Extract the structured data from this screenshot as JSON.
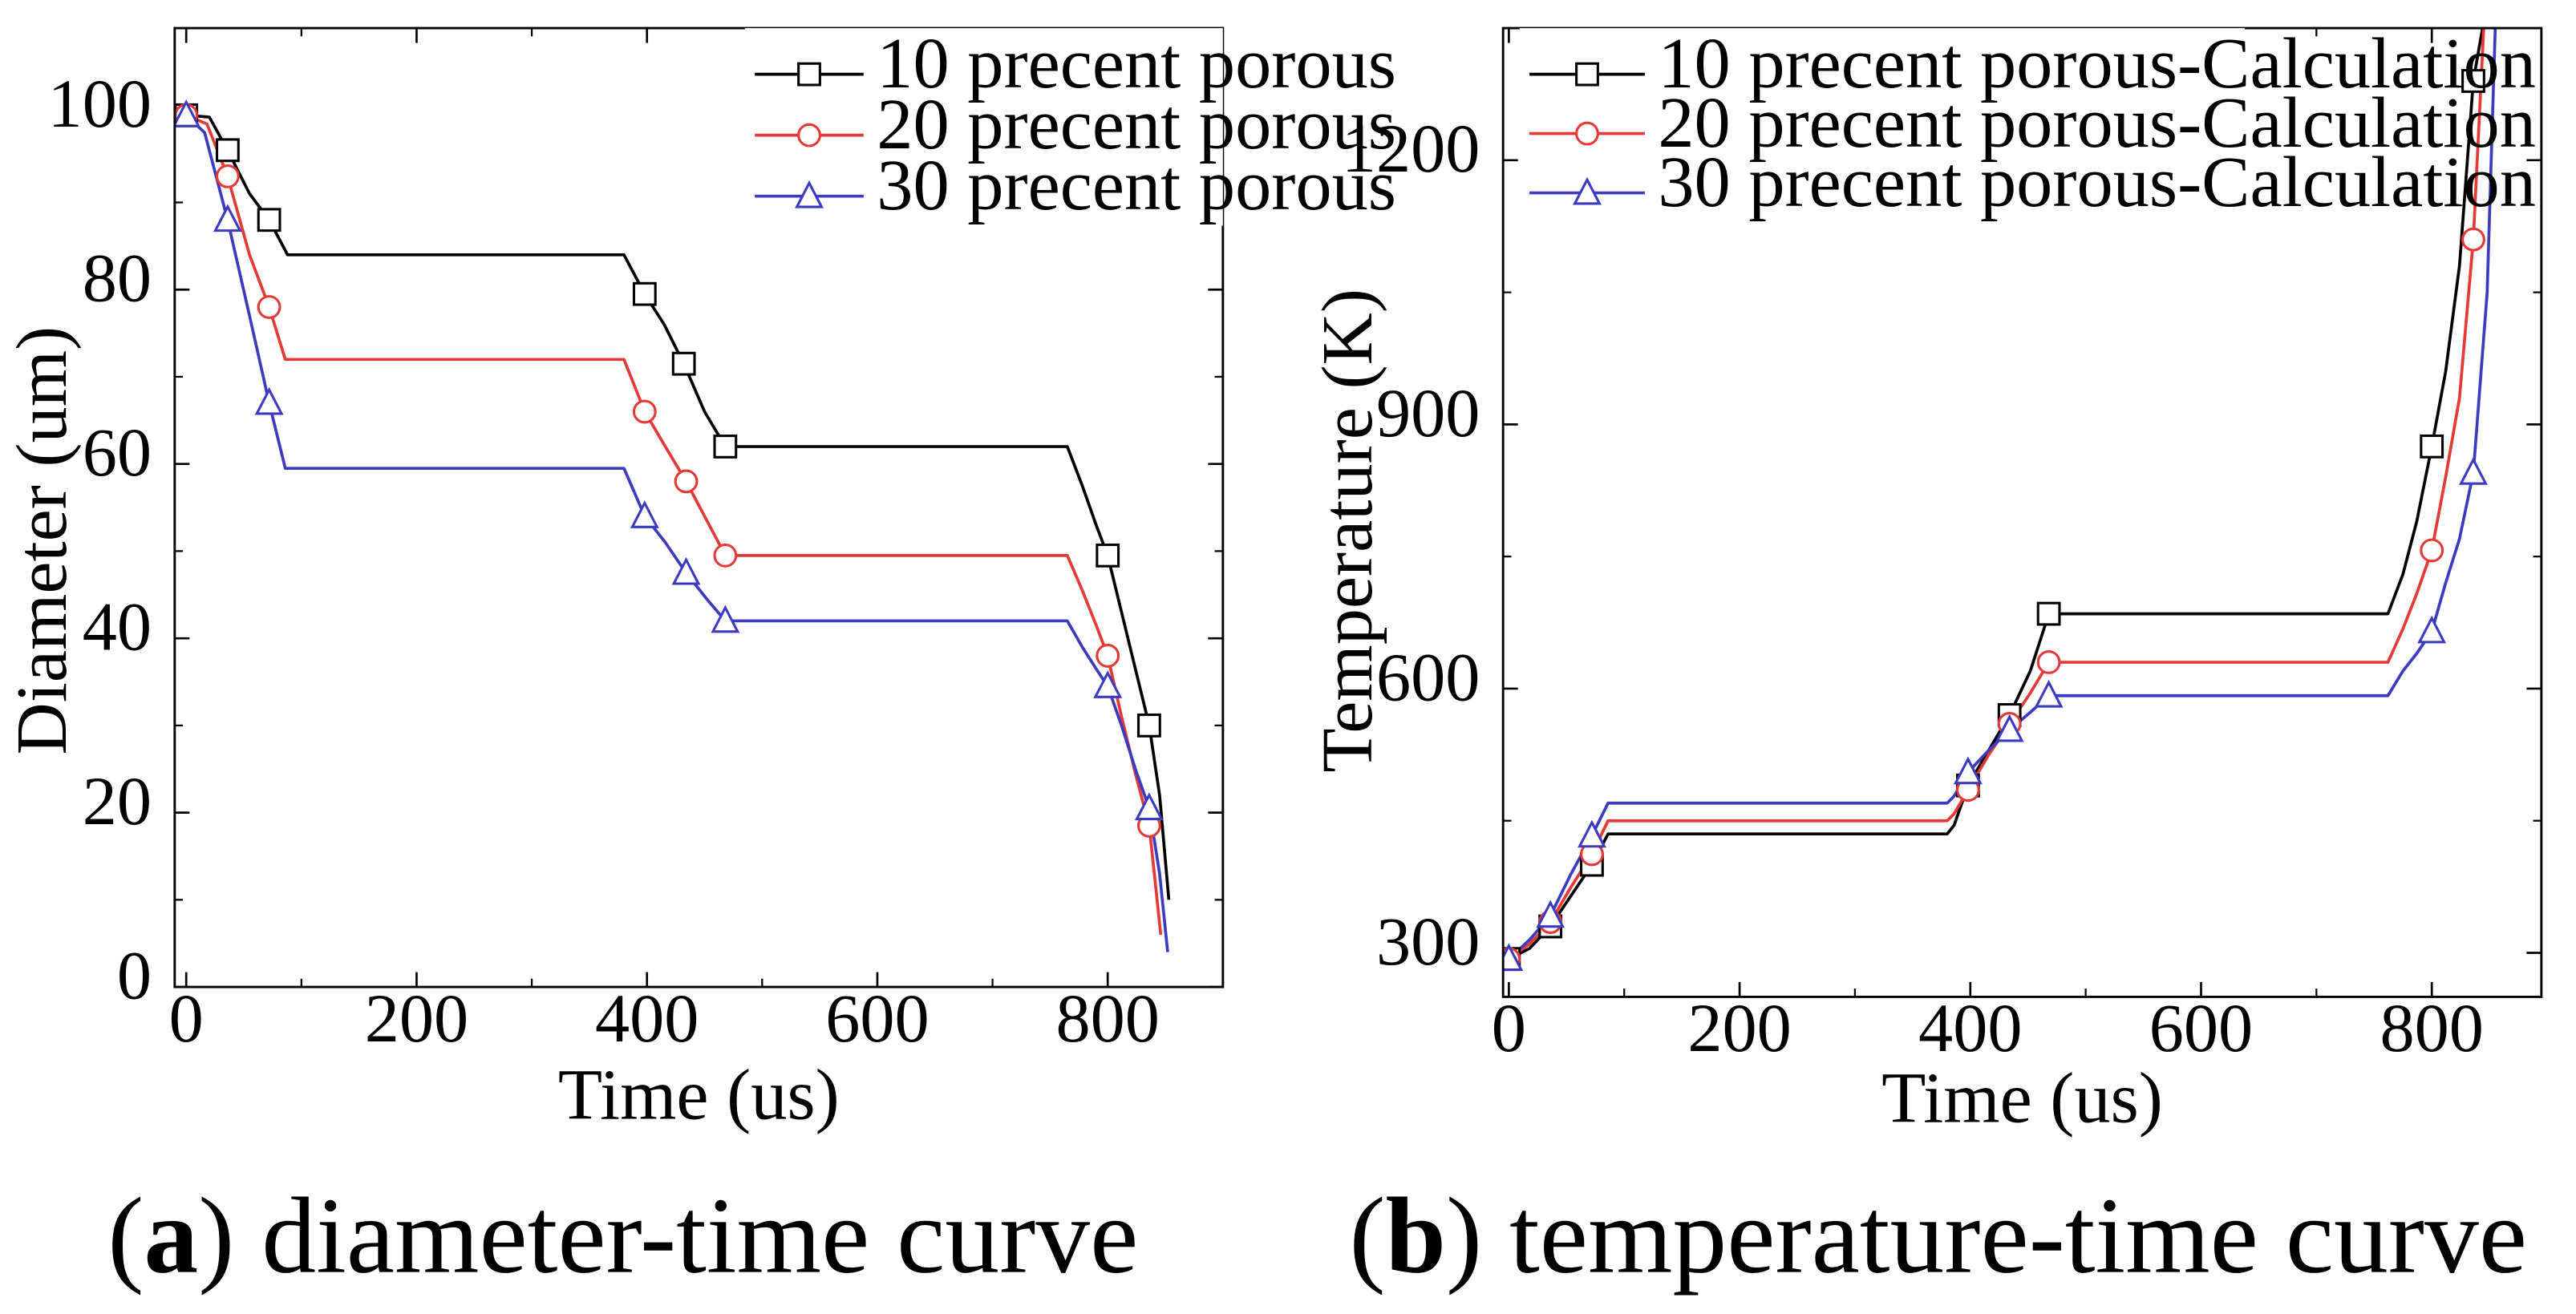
{
  "chart_data": [
    {
      "type": "line",
      "panel_letter": "a",
      "caption_rest": ") diameter-time curve",
      "xlabel": "Time (us)",
      "ylabel": "Diameter (um)",
      "xlim": [
        -10,
        900
      ],
      "ylim": [
        0,
        110
      ],
      "xticks": [
        0,
        200,
        400,
        600,
        800
      ],
      "xtick_labels": [
        "0",
        "200",
        "400",
        "600",
        "800"
      ],
      "yticks": [
        0,
        20,
        40,
        60,
        80,
        100
      ],
      "ytick_labels": [
        "0",
        "20",
        "40",
        "60",
        "80",
        "100"
      ],
      "legend_position": "top-right",
      "series": [
        {
          "name": "10 precent porous",
          "color": "#000000",
          "marker": "square",
          "points": [
            [
              0,
              100
            ],
            [
              20,
              99.8
            ],
            [
              36,
              96
            ],
            [
              55,
              91
            ],
            [
              72,
              88
            ],
            [
              88,
              84
            ],
            [
              150,
              84
            ],
            [
              380,
              84
            ],
            [
              398,
              79.5
            ],
            [
              415,
              76
            ],
            [
              432,
              71.5
            ],
            [
              450,
              66
            ],
            [
              468,
              62
            ],
            [
              520,
              62
            ],
            [
              765,
              62
            ],
            [
              778,
              57.5
            ],
            [
              790,
              53
            ],
            [
              800,
              49.5
            ],
            [
              812,
              43
            ],
            [
              824,
              36.5
            ],
            [
              836,
              30
            ],
            [
              845,
              22
            ],
            [
              853,
              10
            ]
          ],
          "markers": [
            [
              0,
              100
            ],
            [
              36,
              96
            ],
            [
              72,
              88
            ],
            [
              398,
              79.5
            ],
            [
              432,
              71.5
            ],
            [
              468,
              62
            ],
            [
              800,
              49.5
            ],
            [
              836,
              30
            ]
          ]
        },
        {
          "name": "20 precent porous",
          "color": "#e53935",
          "marker": "circle",
          "points": [
            [
              0,
              100
            ],
            [
              18,
              99
            ],
            [
              36,
              93
            ],
            [
              55,
              84
            ],
            [
              72,
              78
            ],
            [
              86,
              72
            ],
            [
              150,
              72
            ],
            [
              380,
              72
            ],
            [
              398,
              66
            ],
            [
              416,
              62
            ],
            [
              434,
              58
            ],
            [
              452,
              53.5
            ],
            [
              468,
              49.5
            ],
            [
              520,
              49.5
            ],
            [
              765,
              49.5
            ],
            [
              778,
              45.5
            ],
            [
              790,
              41.5
            ],
            [
              800,
              38
            ],
            [
              812,
              31
            ],
            [
              824,
              24.5
            ],
            [
              836,
              18.5
            ],
            [
              842,
              11
            ],
            [
              846,
              6
            ]
          ],
          "markers": [
            [
              0,
              100
            ],
            [
              36,
              93
            ],
            [
              72,
              78
            ],
            [
              398,
              66
            ],
            [
              434,
              58
            ],
            [
              468,
              49.5
            ],
            [
              800,
              38
            ],
            [
              836,
              18.5
            ]
          ]
        },
        {
          "name": "30 precent porous",
          "color": "#3b3bbf",
          "marker": "triangle",
          "points": [
            [
              0,
              100
            ],
            [
              16,
              98
            ],
            [
              36,
              88
            ],
            [
              55,
              77
            ],
            [
              72,
              67
            ],
            [
              86,
              59.5
            ],
            [
              150,
              59.5
            ],
            [
              380,
              59.5
            ],
            [
              398,
              54
            ],
            [
              416,
              51
            ],
            [
              434,
              47.5
            ],
            [
              452,
              44.5
            ],
            [
              468,
              42
            ],
            [
              520,
              42
            ],
            [
              765,
              42
            ],
            [
              778,
              39
            ],
            [
              790,
              36.5
            ],
            [
              800,
              34.5
            ],
            [
              812,
              30
            ],
            [
              824,
              25
            ],
            [
              836,
              20.5
            ],
            [
              845,
              13
            ],
            [
              852,
              4
            ]
          ],
          "markers": [
            [
              0,
              100
            ],
            [
              36,
              88
            ],
            [
              72,
              67
            ],
            [
              398,
              54
            ],
            [
              434,
              47.5
            ],
            [
              468,
              42
            ],
            [
              800,
              34.5
            ],
            [
              836,
              20.5
            ]
          ]
        }
      ]
    },
    {
      "type": "line",
      "panel_letter": "b",
      "caption_rest": ") temperature-time curve",
      "xlabel": "Time (us)",
      "ylabel": "Temperature (K)",
      "xlim": [
        -5,
        895
      ],
      "ylim": [
        250,
        1350
      ],
      "xticks": [
        0,
        200,
        400,
        600,
        800
      ],
      "xtick_labels": [
        "0",
        "200",
        "400",
        "600",
        "800"
      ],
      "yticks": [
        300,
        600,
        900,
        1200
      ],
      "ytick_labels": [
        "300",
        "600",
        "900",
        "1200"
      ],
      "legend_position": "top-left",
      "series": [
        {
          "name": "10 precent porous-Calculation",
          "color": "#000000",
          "marker": "square",
          "points": [
            [
              0,
              293
            ],
            [
              18,
              305
            ],
            [
              36,
              330
            ],
            [
              54,
              365
            ],
            [
              72,
              400
            ],
            [
              86,
              435
            ],
            [
              150,
              435
            ],
            [
              380,
              435
            ],
            [
              386,
              445
            ],
            [
              398,
              490
            ],
            [
              416,
              530
            ],
            [
              434,
              570
            ],
            [
              452,
              620
            ],
            [
              468,
              685
            ],
            [
              520,
              685
            ],
            [
              762,
              685
            ],
            [
              775,
              730
            ],
            [
              787,
              790
            ],
            [
              800,
              875
            ],
            [
              812,
              960
            ],
            [
              824,
              1080
            ],
            [
              836,
              1290
            ],
            [
              844,
              1350
            ]
          ],
          "markers": [
            [
              0,
              293
            ],
            [
              36,
              330
            ],
            [
              72,
              400
            ],
            [
              398,
              490
            ],
            [
              434,
              570
            ],
            [
              468,
              685
            ],
            [
              800,
              875
            ],
            [
              836,
              1290
            ]
          ]
        },
        {
          "name": "20 precent porous-Calculation",
          "color": "#e53935",
          "marker": "circle",
          "points": [
            [
              0,
              293
            ],
            [
              18,
              310
            ],
            [
              36,
              335
            ],
            [
              54,
              375
            ],
            [
              72,
              412
            ],
            [
              86,
              450
            ],
            [
              150,
              450
            ],
            [
              380,
              450
            ],
            [
              386,
              458
            ],
            [
              398,
              485
            ],
            [
              416,
              525
            ],
            [
              434,
              560
            ],
            [
              452,
              595
            ],
            [
              468,
              630
            ],
            [
              520,
              630
            ],
            [
              762,
              630
            ],
            [
              775,
              668
            ],
            [
              787,
              708
            ],
            [
              800,
              757
            ],
            [
              812,
              840
            ],
            [
              824,
              930
            ],
            [
              836,
              1110
            ],
            [
              845,
              1350
            ]
          ],
          "markers": [
            [
              0,
              293
            ],
            [
              36,
              335
            ],
            [
              72,
              412
            ],
            [
              398,
              485
            ],
            [
              434,
              560
            ],
            [
              468,
              630
            ],
            [
              800,
              757
            ],
            [
              836,
              1110
            ]
          ]
        },
        {
          "name": "30 precent porous-Calculation",
          "color": "#3b3bbf",
          "marker": "triangle",
          "points": [
            [
              0,
              293
            ],
            [
              18,
              315
            ],
            [
              36,
              342
            ],
            [
              54,
              390
            ],
            [
              72,
              433
            ],
            [
              86,
              470
            ],
            [
              150,
              470
            ],
            [
              380,
              470
            ],
            [
              386,
              478
            ],
            [
              398,
              505
            ],
            [
              416,
              530
            ],
            [
              434,
              553
            ],
            [
              452,
              573
            ],
            [
              468,
              592
            ],
            [
              520,
              592
            ],
            [
              762,
              592
            ],
            [
              775,
              620
            ],
            [
              787,
              640
            ],
            [
              800,
              665
            ],
            [
              812,
              720
            ],
            [
              824,
              770
            ],
            [
              836,
              845
            ],
            [
              848,
              1050
            ],
            [
              855,
              1350
            ]
          ],
          "markers": [
            [
              0,
              293
            ],
            [
              36,
              342
            ],
            [
              72,
              433
            ],
            [
              398,
              505
            ],
            [
              434,
              553
            ],
            [
              468,
              592
            ],
            [
              800,
              665
            ],
            [
              836,
              845
            ]
          ]
        }
      ]
    }
  ]
}
